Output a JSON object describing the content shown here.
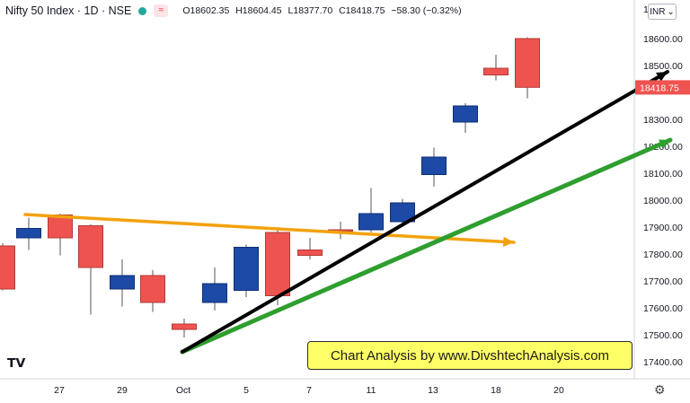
{
  "header": {
    "symbol": "Nifty 50 Index · 1D · NSE",
    "ohlc": {
      "o": "O18602.35",
      "h": "H18604.45",
      "l": "L18377.70",
      "c": "C18418.75",
      "chg": "−58.30 (−0.32%)"
    },
    "currency": "INR",
    "currency_top_partial": "18"
  },
  "banner": "Chart Analysis by www.DivshtechAnalysis.com",
  "colors": {
    "up": "#1c4aa6",
    "down": "#ef5350",
    "wick": "#555555",
    "orange_line": "#f2a20c",
    "black_line": "#000000",
    "green_line": "#2e9e2e",
    "last_price_bg": "#ef5350"
  },
  "chart_data": {
    "type": "candlestick",
    "ylim": [
      17370,
      18700
    ],
    "y_ticks": [
      "18600.00",
      "18500.00",
      "18300.00",
      "18200.00",
      "18100.00",
      "18000.00",
      "17900.00",
      "17800.00",
      "17700.00",
      "17600.00",
      "17500.00",
      "17400.00"
    ],
    "x_ticks": [
      "27",
      "29",
      "Oct",
      "5",
      "7",
      "11",
      "13",
      "18",
      "20"
    ],
    "last_price_label": "18418.75",
    "candles": [
      {
        "o": 17830,
        "h": 17840,
        "l": 17665,
        "c": 17670
      },
      {
        "o": 17860,
        "h": 17935,
        "l": 17815,
        "c": 17895
      },
      {
        "o": 17945,
        "h": 17950,
        "l": 17795,
        "c": 17860
      },
      {
        "o": 17905,
        "h": 17910,
        "l": 17575,
        "c": 17750
      },
      {
        "o": 17670,
        "h": 17780,
        "l": 17605,
        "c": 17720
      },
      {
        "o": 17720,
        "h": 17740,
        "l": 17585,
        "c": 17620
      },
      {
        "o": 17540,
        "h": 17560,
        "l": 17490,
        "c": 17520
      },
      {
        "o": 17620,
        "h": 17750,
        "l": 17590,
        "c": 17690
      },
      {
        "o": 17665,
        "h": 17835,
        "l": 17640,
        "c": 17825
      },
      {
        "o": 17880,
        "h": 17900,
        "l": 17610,
        "c": 17645
      },
      {
        "o": 17815,
        "h": 17860,
        "l": 17780,
        "c": 17795
      },
      {
        "o": 17890,
        "h": 17920,
        "l": 17855,
        "c": 17885
      },
      {
        "o": 17890,
        "h": 18045,
        "l": 17880,
        "c": 17950
      },
      {
        "o": 17920,
        "h": 18005,
        "l": 17905,
        "c": 17990
      },
      {
        "o": 18095,
        "h": 18195,
        "l": 18050,
        "c": 18160
      },
      {
        "o": 18290,
        "h": 18360,
        "l": 18250,
        "c": 18350
      },
      {
        "o": 18490,
        "h": 18540,
        "l": 18445,
        "c": 18465
      },
      {
        "o": 18600,
        "h": 18605,
        "l": 18378,
        "c": 18419
      }
    ]
  }
}
